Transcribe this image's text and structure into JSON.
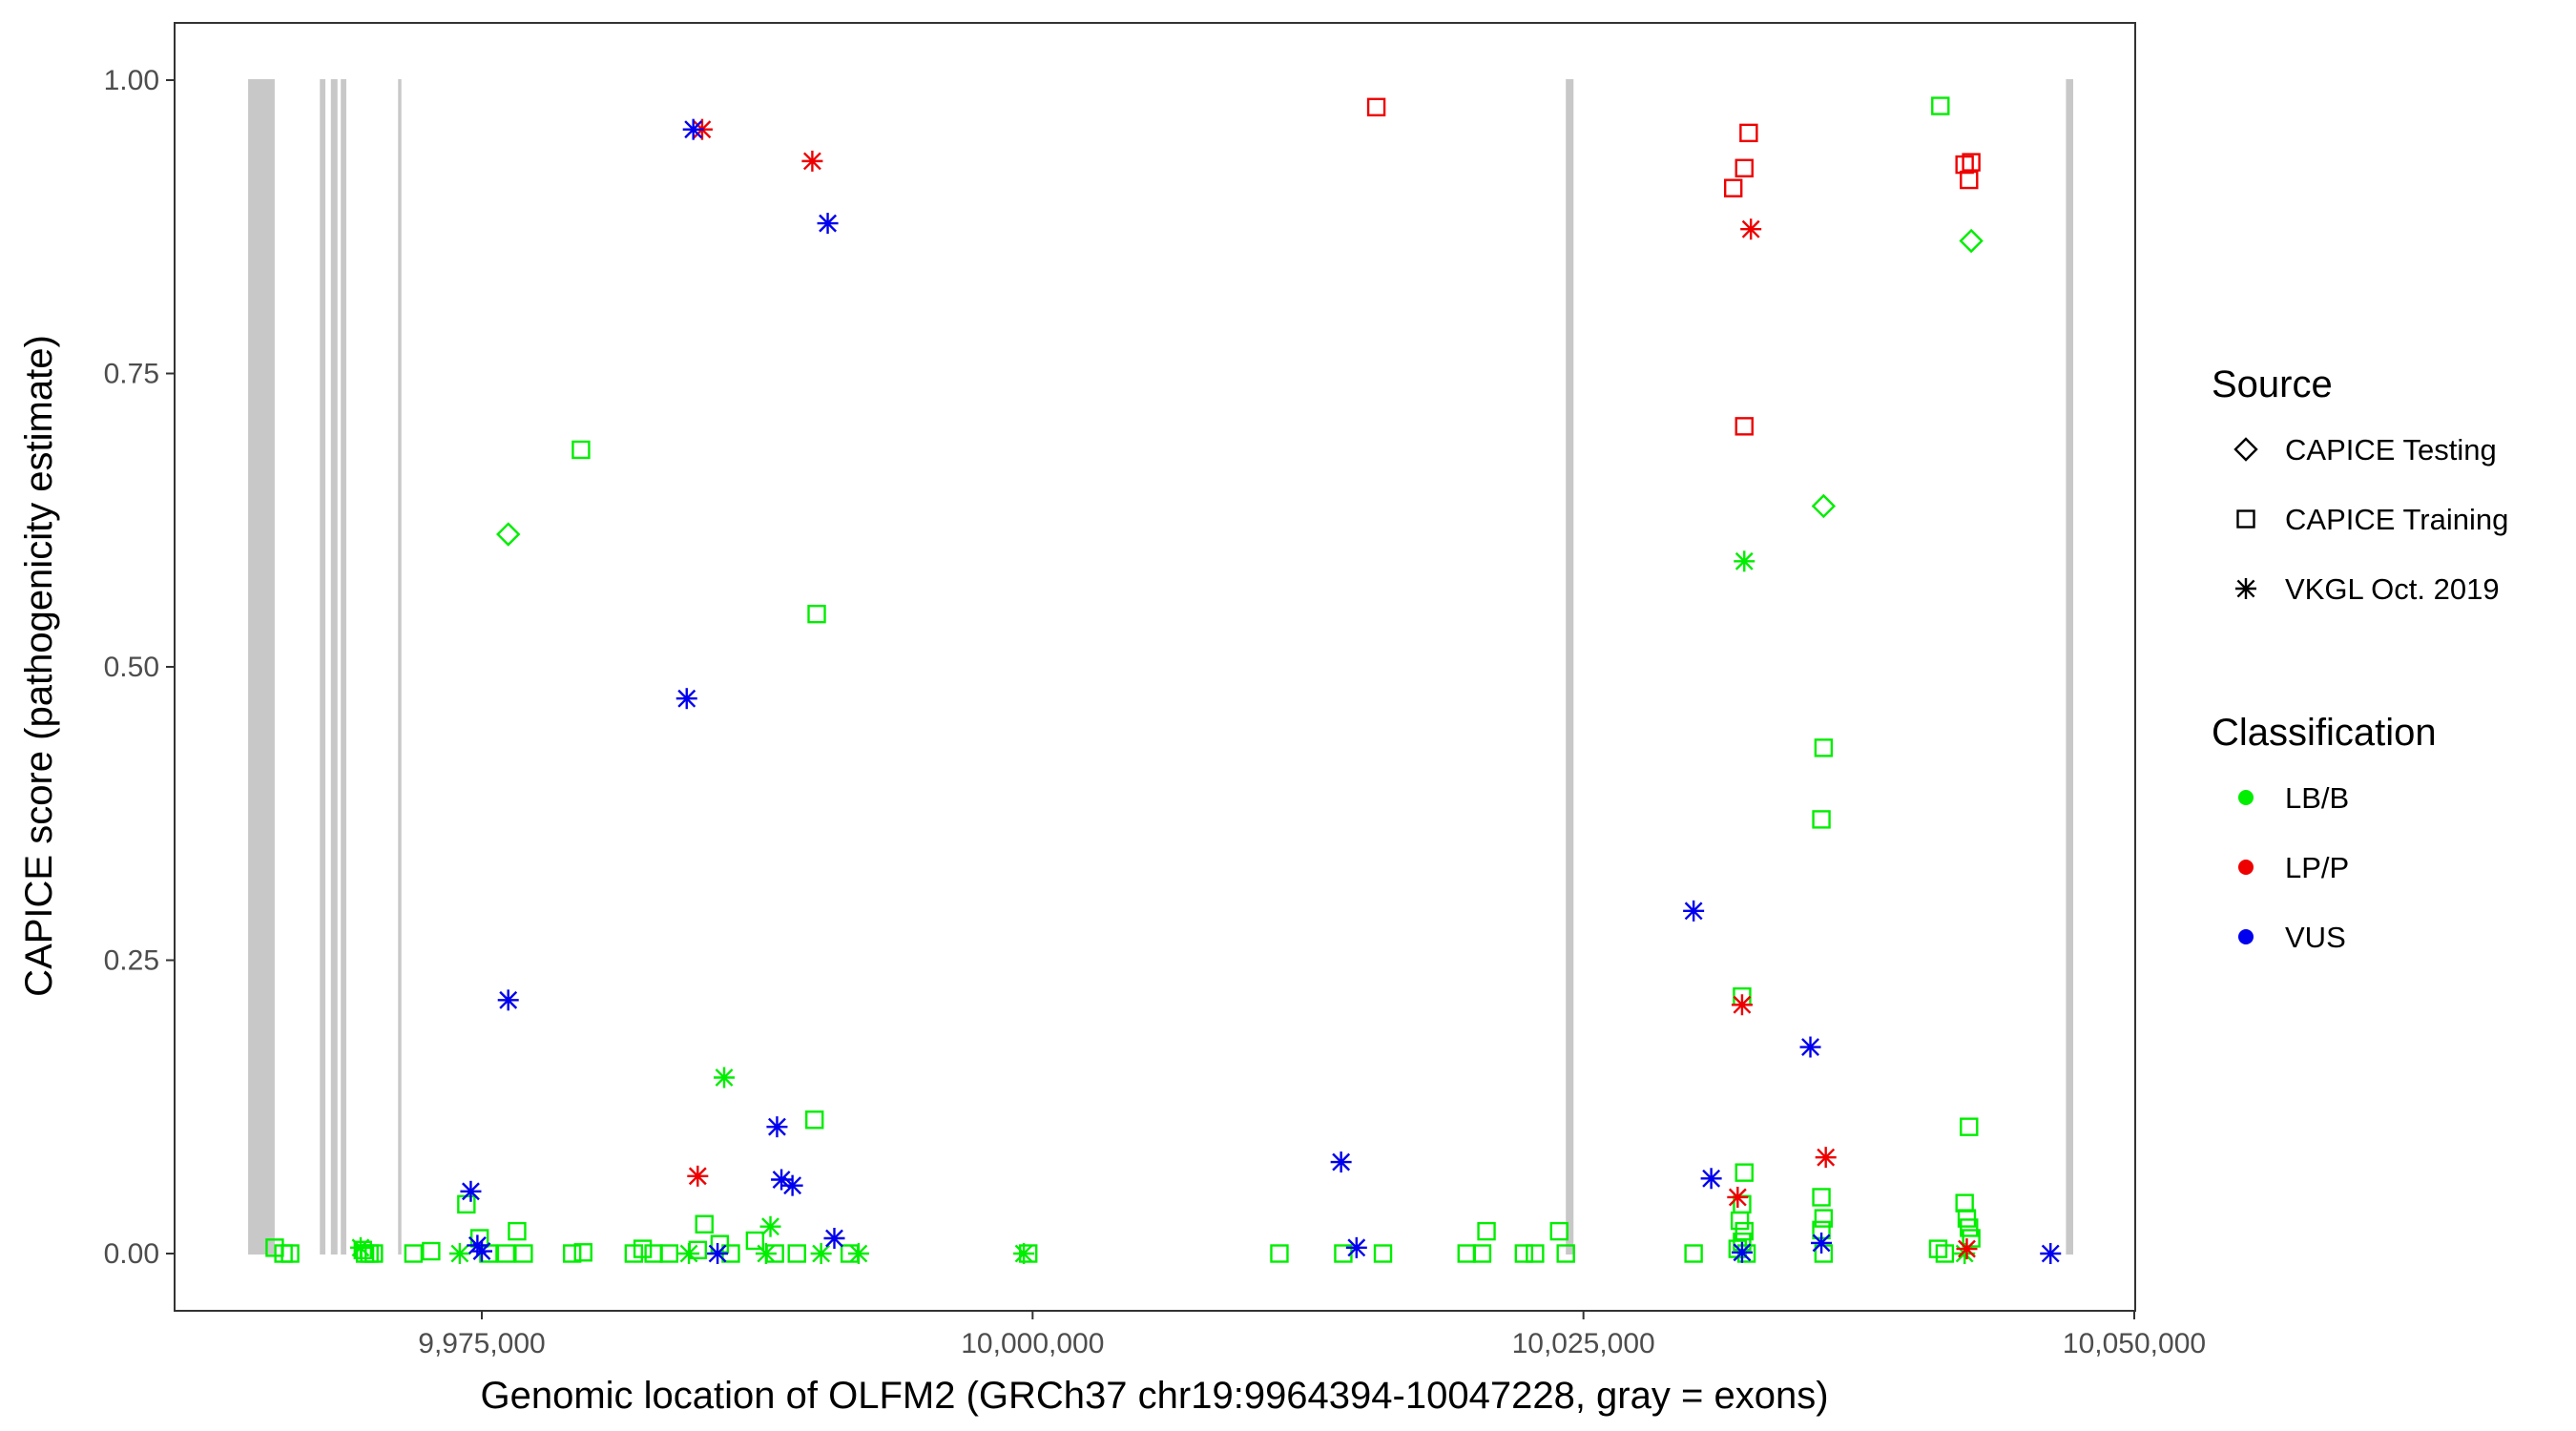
{
  "chart_data": {
    "type": "scatter",
    "xlabel": "Genomic location of OLFM2 (GRCh37 chr19:9964394-10047228, gray = exons)",
    "ylabel": "CAPICE score (pathogenicity estimate)",
    "xlim": [
      9960000,
      10050000
    ],
    "ylim": [
      -0.05,
      1.05
    ],
    "x_ticks": [
      9975000,
      10000000,
      10025000,
      10050000
    ],
    "x_tick_labels": [
      "9,975,000",
      "10,000,000",
      "10,025,000",
      "10,050,000"
    ],
    "y_ticks": [
      0,
      0.25,
      0.5,
      0.75,
      1.0
    ],
    "y_tick_labels": [
      "0.00",
      "0.25",
      "0.50",
      "0.75",
      "1.00"
    ],
    "grid": false,
    "exons": [
      [
        9964394,
        9965600
      ],
      [
        9967650,
        9967900
      ],
      [
        9968150,
        9968450
      ],
      [
        9968600,
        9968850
      ],
      [
        9971200,
        9971350
      ],
      [
        10024200,
        10024550
      ],
      [
        10046900,
        10047228
      ]
    ],
    "exon_color": "#c8c8c8",
    "legend_source": {
      "title": "Source",
      "entries": [
        {
          "label": "CAPICE Testing",
          "shape": "diamond"
        },
        {
          "label": "CAPICE Training",
          "shape": "square"
        },
        {
          "label": "VKGL Oct. 2019",
          "shape": "star"
        }
      ]
    },
    "legend_classification": {
      "title": "Classification",
      "entries": [
        {
          "label": "LB/B",
          "color": "#00ee00"
        },
        {
          "label": "LP/P",
          "color": "#ee0000"
        },
        {
          "label": "VUS",
          "color": "#0000ee"
        }
      ]
    },
    "points": [
      {
        "x": 9979500,
        "y": 0.685,
        "source": "CAPICE Training",
        "cls": "LB/B"
      },
      {
        "x": 9976200,
        "y": 0.613,
        "source": "CAPICE Testing",
        "cls": "LB/B"
      },
      {
        "x": 9990200,
        "y": 0.545,
        "source": "CAPICE Training",
        "cls": "LB/B"
      },
      {
        "x": 9986000,
        "y": 0.15,
        "source": "VKGL Oct. 2019",
        "cls": "LB/B"
      },
      {
        "x": 9990100,
        "y": 0.114,
        "source": "CAPICE Training",
        "cls": "LB/B"
      },
      {
        "x": 9974300,
        "y": 0.042,
        "source": "CAPICE Training",
        "cls": "LB/B"
      },
      {
        "x": 9985100,
        "y": 0.025,
        "source": "CAPICE Training",
        "cls": "LB/B"
      },
      {
        "x": 9988100,
        "y": 0.023,
        "source": "VKGL Oct. 2019",
        "cls": "LB/B"
      },
      {
        "x": 9976600,
        "y": 0.019,
        "source": "CAPICE Training",
        "cls": "LB/B"
      },
      {
        "x": 9987400,
        "y": 0.011,
        "source": "CAPICE Training",
        "cls": "LB/B"
      },
      {
        "x": 9974900,
        "y": 0.013,
        "source": "CAPICE Training",
        "cls": "LB/B"
      },
      {
        "x": 9965600,
        "y": 0.005,
        "source": "CAPICE Training",
        "cls": "LB/B"
      },
      {
        "x": 9966000,
        "y": 0.0,
        "source": "CAPICE Training",
        "cls": "LB/B"
      },
      {
        "x": 9966300,
        "y": 0.0,
        "source": "CAPICE Training",
        "cls": "LB/B"
      },
      {
        "x": 9969500,
        "y": 0.005,
        "source": "VKGL Oct. 2019",
        "cls": "LB/B"
      },
      {
        "x": 9969600,
        "y": 0.003,
        "source": "CAPICE Training",
        "cls": "LB/B"
      },
      {
        "x": 9969700,
        "y": 0.0,
        "source": "CAPICE Training",
        "cls": "LB/B"
      },
      {
        "x": 9969900,
        "y": 0.0,
        "source": "CAPICE Training",
        "cls": "LB/B"
      },
      {
        "x": 9970100,
        "y": 0.0,
        "source": "CAPICE Training",
        "cls": "LB/B"
      },
      {
        "x": 9971900,
        "y": 0.0,
        "source": "CAPICE Training",
        "cls": "LB/B"
      },
      {
        "x": 9972700,
        "y": 0.002,
        "source": "CAPICE Training",
        "cls": "LB/B"
      },
      {
        "x": 9974000,
        "y": 0.0,
        "source": "VKGL Oct. 2019",
        "cls": "LB/B"
      },
      {
        "x": 9975300,
        "y": 0.0,
        "source": "CAPICE Training",
        "cls": "LB/B"
      },
      {
        "x": 9976100,
        "y": 0.0,
        "source": "CAPICE Training",
        "cls": "LB/B"
      },
      {
        "x": 9976900,
        "y": 0.0,
        "source": "CAPICE Training",
        "cls": "LB/B"
      },
      {
        "x": 9979100,
        "y": 0.0,
        "source": "CAPICE Training",
        "cls": "LB/B"
      },
      {
        "x": 9979600,
        "y": 0.001,
        "source": "CAPICE Training",
        "cls": "LB/B"
      },
      {
        "x": 9981900,
        "y": 0.0,
        "source": "CAPICE Training",
        "cls": "LB/B"
      },
      {
        "x": 9982300,
        "y": 0.004,
        "source": "CAPICE Training",
        "cls": "LB/B"
      },
      {
        "x": 9982800,
        "y": 0.0,
        "source": "CAPICE Training",
        "cls": "LB/B"
      },
      {
        "x": 9983500,
        "y": 0.0,
        "source": "CAPICE Training",
        "cls": "LB/B"
      },
      {
        "x": 9984400,
        "y": 0.0,
        "source": "VKGL Oct. 2019",
        "cls": "LB/B"
      },
      {
        "x": 9984800,
        "y": 0.003,
        "source": "CAPICE Training",
        "cls": "LB/B"
      },
      {
        "x": 9985800,
        "y": 0.008,
        "source": "CAPICE Training",
        "cls": "LB/B"
      },
      {
        "x": 9986300,
        "y": 0.0,
        "source": "CAPICE Training",
        "cls": "LB/B"
      },
      {
        "x": 9987900,
        "y": 0.0,
        "source": "VKGL Oct. 2019",
        "cls": "LB/B"
      },
      {
        "x": 9988300,
        "y": 0.0,
        "source": "CAPICE Training",
        "cls": "LB/B"
      },
      {
        "x": 9989300,
        "y": 0.0,
        "source": "CAPICE Training",
        "cls": "LB/B"
      },
      {
        "x": 9990400,
        "y": 0.0,
        "source": "VKGL Oct. 2019",
        "cls": "LB/B"
      },
      {
        "x": 9991700,
        "y": 0.0,
        "source": "CAPICE Training",
        "cls": "LB/B"
      },
      {
        "x": 9992100,
        "y": 0.0,
        "source": "VKGL Oct. 2019",
        "cls": "LB/B"
      },
      {
        "x": 9999600,
        "y": 0.0,
        "source": "VKGL Oct. 2019",
        "cls": "LB/B"
      },
      {
        "x": 9999800,
        "y": 0.0,
        "source": "CAPICE Training",
        "cls": "LB/B"
      },
      {
        "x": 10011200,
        "y": 0.0,
        "source": "CAPICE Training",
        "cls": "LB/B"
      },
      {
        "x": 10014100,
        "y": 0.0,
        "source": "CAPICE Training",
        "cls": "LB/B"
      },
      {
        "x": 10015900,
        "y": 0.0,
        "source": "CAPICE Training",
        "cls": "LB/B"
      },
      {
        "x": 10019700,
        "y": 0.0,
        "source": "CAPICE Training",
        "cls": "LB/B"
      },
      {
        "x": 10020400,
        "y": 0.0,
        "source": "CAPICE Training",
        "cls": "LB/B"
      },
      {
        "x": 10020600,
        "y": 0.019,
        "source": "CAPICE Training",
        "cls": "LB/B"
      },
      {
        "x": 10022300,
        "y": 0.0,
        "source": "CAPICE Training",
        "cls": "LB/B"
      },
      {
        "x": 10022800,
        "y": 0.0,
        "source": "CAPICE Training",
        "cls": "LB/B"
      },
      {
        "x": 10023900,
        "y": 0.019,
        "source": "CAPICE Training",
        "cls": "LB/B"
      },
      {
        "x": 10024200,
        "y": 0.0,
        "source": "CAPICE Training",
        "cls": "LB/B"
      },
      {
        "x": 10030000,
        "y": 0.0,
        "source": "CAPICE Training",
        "cls": "LB/B"
      },
      {
        "x": 10032300,
        "y": 0.59,
        "source": "VKGL Oct. 2019",
        "cls": "LB/B"
      },
      {
        "x": 10032200,
        "y": 0.219,
        "source": "CAPICE Training",
        "cls": "LB/B"
      },
      {
        "x": 10032300,
        "y": 0.069,
        "source": "CAPICE Training",
        "cls": "LB/B"
      },
      {
        "x": 10032200,
        "y": 0.042,
        "source": "CAPICE Training",
        "cls": "LB/B"
      },
      {
        "x": 10032100,
        "y": 0.028,
        "source": "CAPICE Training",
        "cls": "LB/B"
      },
      {
        "x": 10032300,
        "y": 0.019,
        "source": "CAPICE Training",
        "cls": "LB/B"
      },
      {
        "x": 10032200,
        "y": 0.01,
        "source": "CAPICE Training",
        "cls": "LB/B"
      },
      {
        "x": 10032000,
        "y": 0.004,
        "source": "CAPICE Training",
        "cls": "LB/B"
      },
      {
        "x": 10032400,
        "y": 0.0,
        "source": "CAPICE Training",
        "cls": "LB/B"
      },
      {
        "x": 10035900,
        "y": 0.637,
        "source": "CAPICE Testing",
        "cls": "LB/B"
      },
      {
        "x": 10035900,
        "y": 0.431,
        "source": "CAPICE Training",
        "cls": "LB/B"
      },
      {
        "x": 10035800,
        "y": 0.37,
        "source": "CAPICE Training",
        "cls": "LB/B"
      },
      {
        "x": 10035800,
        "y": 0.048,
        "source": "CAPICE Training",
        "cls": "LB/B"
      },
      {
        "x": 10035900,
        "y": 0.03,
        "source": "CAPICE Training",
        "cls": "LB/B"
      },
      {
        "x": 10035800,
        "y": 0.02,
        "source": "CAPICE Training",
        "cls": "LB/B"
      },
      {
        "x": 10035900,
        "y": 0.0,
        "source": "CAPICE Training",
        "cls": "LB/B"
      },
      {
        "x": 10041200,
        "y": 0.978,
        "source": "CAPICE Training",
        "cls": "LB/B"
      },
      {
        "x": 10042600,
        "y": 0.863,
        "source": "CAPICE Testing",
        "cls": "LB/B"
      },
      {
        "x": 10042500,
        "y": 0.108,
        "source": "CAPICE Training",
        "cls": "LB/B"
      },
      {
        "x": 10042300,
        "y": 0.043,
        "source": "CAPICE Training",
        "cls": "LB/B"
      },
      {
        "x": 10042400,
        "y": 0.03,
        "source": "CAPICE Training",
        "cls": "LB/B"
      },
      {
        "x": 10042500,
        "y": 0.022,
        "source": "CAPICE Training",
        "cls": "LB/B"
      },
      {
        "x": 10042600,
        "y": 0.013,
        "source": "CAPICE Training",
        "cls": "LB/B"
      },
      {
        "x": 10041100,
        "y": 0.004,
        "source": "CAPICE Training",
        "cls": "LB/B"
      },
      {
        "x": 10041400,
        "y": 0.0,
        "source": "CAPICE Training",
        "cls": "LB/B"
      },
      {
        "x": 10042300,
        "y": 0.0,
        "source": "VKGL Oct. 2019",
        "cls": "LB/B"
      },
      {
        "x": 10015600,
        "y": 0.977,
        "source": "CAPICE Training",
        "cls": "LP/P"
      },
      {
        "x": 9985000,
        "y": 0.958,
        "source": "VKGL Oct. 2019",
        "cls": "LP/P"
      },
      {
        "x": 9990000,
        "y": 0.931,
        "source": "VKGL Oct. 2019",
        "cls": "LP/P"
      },
      {
        "x": 9984800,
        "y": 0.066,
        "source": "VKGL Oct. 2019",
        "cls": "LP/P"
      },
      {
        "x": 10032500,
        "y": 0.955,
        "source": "CAPICE Training",
        "cls": "LP/P"
      },
      {
        "x": 10032300,
        "y": 0.925,
        "source": "CAPICE Training",
        "cls": "LP/P"
      },
      {
        "x": 10031800,
        "y": 0.908,
        "source": "CAPICE Training",
        "cls": "LP/P"
      },
      {
        "x": 10032600,
        "y": 0.873,
        "source": "VKGL Oct. 2019",
        "cls": "LP/P"
      },
      {
        "x": 10032300,
        "y": 0.705,
        "source": "CAPICE Training",
        "cls": "LP/P"
      },
      {
        "x": 10032200,
        "y": 0.212,
        "source": "VKGL Oct. 2019",
        "cls": "LP/P"
      },
      {
        "x": 10032000,
        "y": 0.048,
        "source": "VKGL Oct. 2019",
        "cls": "LP/P"
      },
      {
        "x": 10036000,
        "y": 0.082,
        "source": "VKGL Oct. 2019",
        "cls": "LP/P"
      },
      {
        "x": 10042300,
        "y": 0.928,
        "source": "CAPICE Training",
        "cls": "LP/P"
      },
      {
        "x": 10042600,
        "y": 0.93,
        "source": "CAPICE Training",
        "cls": "LP/P"
      },
      {
        "x": 10042500,
        "y": 0.915,
        "source": "CAPICE Training",
        "cls": "LP/P"
      },
      {
        "x": 10042400,
        "y": 0.004,
        "source": "VKGL Oct. 2019",
        "cls": "LP/P"
      },
      {
        "x": 9984600,
        "y": 0.958,
        "source": "VKGL Oct. 2019",
        "cls": "VUS"
      },
      {
        "x": 9990700,
        "y": 0.878,
        "source": "VKGL Oct. 2019",
        "cls": "VUS"
      },
      {
        "x": 9984300,
        "y": 0.473,
        "source": "VKGL Oct. 2019",
        "cls": "VUS"
      },
      {
        "x": 9976200,
        "y": 0.216,
        "source": "VKGL Oct. 2019",
        "cls": "VUS"
      },
      {
        "x": 9988400,
        "y": 0.108,
        "source": "VKGL Oct. 2019",
        "cls": "VUS"
      },
      {
        "x": 9988600,
        "y": 0.063,
        "source": "VKGL Oct. 2019",
        "cls": "VUS"
      },
      {
        "x": 9989100,
        "y": 0.058,
        "source": "VKGL Oct. 2019",
        "cls": "VUS"
      },
      {
        "x": 9974500,
        "y": 0.053,
        "source": "VKGL Oct. 2019",
        "cls": "VUS"
      },
      {
        "x": 9991000,
        "y": 0.013,
        "source": "VKGL Oct. 2019",
        "cls": "VUS"
      },
      {
        "x": 9974800,
        "y": 0.007,
        "source": "VKGL Oct. 2019",
        "cls": "VUS"
      },
      {
        "x": 9975000,
        "y": 0.002,
        "source": "VKGL Oct. 2019",
        "cls": "VUS"
      },
      {
        "x": 9985700,
        "y": 0.0,
        "source": "VKGL Oct. 2019",
        "cls": "VUS"
      },
      {
        "x": 10014000,
        "y": 0.078,
        "source": "VKGL Oct. 2019",
        "cls": "VUS"
      },
      {
        "x": 10014700,
        "y": 0.005,
        "source": "VKGL Oct. 2019",
        "cls": "VUS"
      },
      {
        "x": 10030000,
        "y": 0.292,
        "source": "VKGL Oct. 2019",
        "cls": "VUS"
      },
      {
        "x": 10030800,
        "y": 0.064,
        "source": "VKGL Oct. 2019",
        "cls": "VUS"
      },
      {
        "x": 10032200,
        "y": 0.001,
        "source": "VKGL Oct. 2019",
        "cls": "VUS"
      },
      {
        "x": 10035300,
        "y": 0.176,
        "source": "VKGL Oct. 2019",
        "cls": "VUS"
      },
      {
        "x": 10035800,
        "y": 0.009,
        "source": "VKGL Oct. 2019",
        "cls": "VUS"
      },
      {
        "x": 10046200,
        "y": 0.0,
        "source": "VKGL Oct. 2019",
        "cls": "VUS"
      }
    ]
  }
}
